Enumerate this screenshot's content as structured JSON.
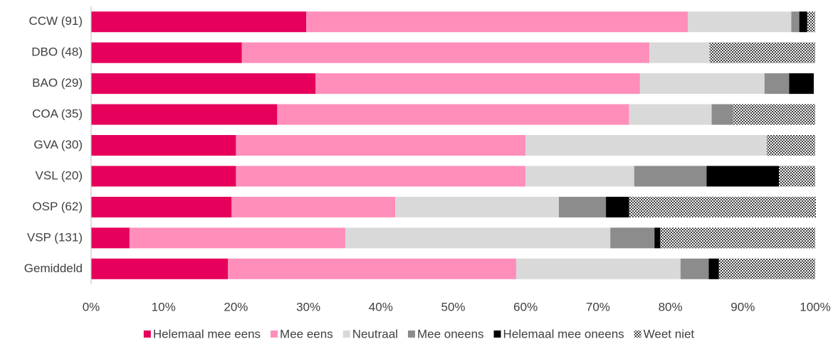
{
  "chart_data": {
    "type": "stacked-bar-horizontal",
    "categories": [
      "CCW (91)",
      "DBO (48)",
      "BAO (29)",
      "COA (35)",
      "GVA (30)",
      "VSL (20)",
      "OSP (62)",
      "VSP (131)",
      "Gemiddeld"
    ],
    "series": [
      {
        "name": "Helemaal mee eens",
        "color": "#e6005c",
        "values": [
          29.7,
          20.8,
          31.0,
          25.7,
          20.0,
          20.0,
          19.4,
          5.3,
          18.9
        ]
      },
      {
        "name": "Mee eens",
        "color": "#ff8fba",
        "values": [
          52.7,
          56.3,
          44.8,
          48.6,
          40.0,
          40.0,
          22.6,
          29.8,
          39.8
        ]
      },
      {
        "name": "Neutraal",
        "color": "#d9d9d9",
        "values": [
          14.3,
          8.3,
          17.2,
          11.4,
          33.3,
          15.0,
          22.6,
          36.6,
          22.7
        ]
      },
      {
        "name": "Mee oneens",
        "color": "#8c8c8c",
        "values": [
          1.1,
          0,
          3.4,
          2.9,
          0,
          10.0,
          6.5,
          6.1,
          3.9
        ]
      },
      {
        "name": "Helemaal mee oneens",
        "color": "#000000",
        "values": [
          1.1,
          0,
          3.4,
          0,
          0,
          10.0,
          3.2,
          0.8,
          1.4
        ]
      },
      {
        "name": "Weet niet",
        "color": "#595959",
        "pattern": "checker",
        "values": [
          1.1,
          14.6,
          0,
          11.4,
          6.7,
          5.0,
          25.8,
          21.4,
          13.3
        ]
      }
    ],
    "xlim": [
      0,
      100
    ],
    "xticks": [
      {
        "value": 0,
        "label": "0%"
      },
      {
        "value": 10,
        "label": "10%"
      },
      {
        "value": 20,
        "label": "20%"
      },
      {
        "value": 30,
        "label": "30%"
      },
      {
        "value": 40,
        "label": "40%"
      },
      {
        "value": 50,
        "label": "50%"
      },
      {
        "value": 60,
        "label": "60%"
      },
      {
        "value": 70,
        "label": "70%"
      },
      {
        "value": 80,
        "label": "80%"
      },
      {
        "value": 90,
        "label": "90%"
      },
      {
        "value": 100,
        "label": "100%"
      }
    ],
    "legend": "bottom"
  }
}
